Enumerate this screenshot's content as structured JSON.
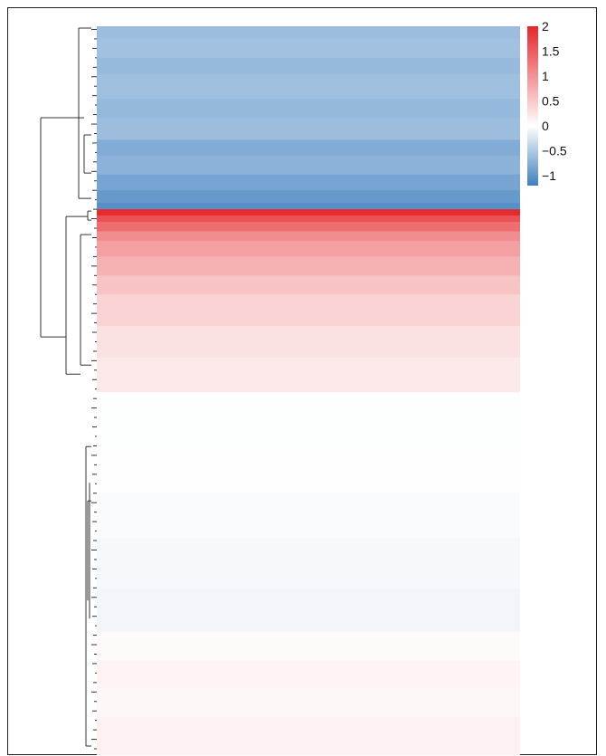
{
  "chart_data": {
    "type": "heatmap",
    "title": "",
    "xlabel": "",
    "ylabel": "",
    "dendrogram": "rows",
    "color_scale": {
      "min": -1.2,
      "max": 2,
      "colors": {
        "low": "#3f7fbf",
        "mid": "#ffffff",
        "high": "#e5262b"
      },
      "ticks": [
        2,
        1.5,
        1,
        0.5,
        0,
        -0.5,
        -1
      ],
      "tick_labels": [
        "2",
        "1.5",
        "1",
        "0.5",
        "0",
        "−0.5",
        "−1"
      ]
    },
    "row_blocks": [
      {
        "rows": 4,
        "value": -0.62
      },
      {
        "rows": 6,
        "value": -0.58
      },
      {
        "rows": 5,
        "value": -0.65
      },
      {
        "rows": 8,
        "value": -0.6
      },
      {
        "rows": 6,
        "value": -0.66
      },
      {
        "rows": 7,
        "value": -0.62
      },
      {
        "rows": 5,
        "value": -0.78
      },
      {
        "rows": 6,
        "value": -0.72
      },
      {
        "rows": 5,
        "value": -0.85
      },
      {
        "rows": 4,
        "value": -0.95
      },
      {
        "rows": 2,
        "value": -1.05
      },
      {
        "rows": 2,
        "value": 1.95
      },
      {
        "rows": 2,
        "value": 1.6
      },
      {
        "rows": 3,
        "value": 1.35
      },
      {
        "rows": 3,
        "value": 1.05
      },
      {
        "rows": 5,
        "value": 0.88
      },
      {
        "rows": 6,
        "value": 0.72
      },
      {
        "rows": 6,
        "value": 0.55
      },
      {
        "rows": 10,
        "value": 0.4
      },
      {
        "rows": 10,
        "value": 0.28
      },
      {
        "rows": 11,
        "value": 0.2
      },
      {
        "rows": 20,
        "value": -0.01
      },
      {
        "rows": 12,
        "value": 0.01
      },
      {
        "rows": 14,
        "value": -0.04
      },
      {
        "rows": 16,
        "value": -0.06
      },
      {
        "rows": 14,
        "value": -0.08
      },
      {
        "rows": 9,
        "value": 0.05
      },
      {
        "rows": 9,
        "value": 0.1
      },
      {
        "rows": 9,
        "value": 0.07
      },
      {
        "rows": 12,
        "value": 0.12
      }
    ]
  }
}
